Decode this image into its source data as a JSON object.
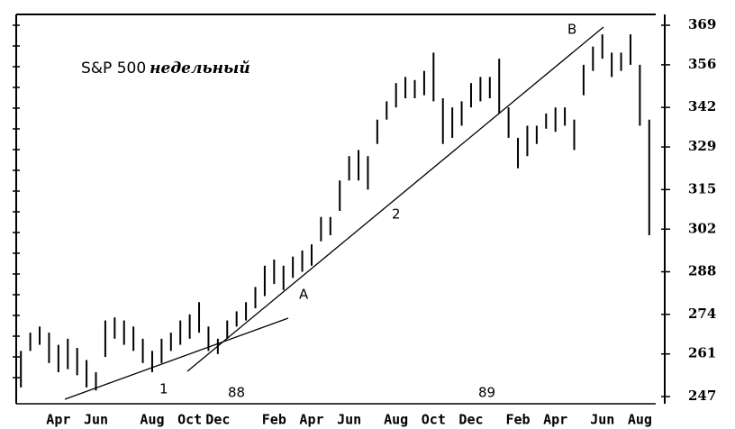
{
  "chart_data": {
    "type": "range",
    "title": "S&P 500",
    "subtitle": "недельный",
    "annotations": [
      "A",
      "B",
      "1",
      "2",
      "88",
      "89"
    ],
    "categories": [
      null,
      null,
      null,
      null,
      "Apr",
      null,
      null,
      null,
      "Jun",
      null,
      null,
      null,
      null,
      null,
      "Aug",
      null,
      null,
      null,
      "Oct",
      null,
      null,
      "Dec",
      null,
      null,
      null,
      null,
      null,
      "Feb",
      null,
      null,
      null,
      "Apr",
      null,
      null,
      null,
      "Jun",
      null,
      null,
      null,
      null,
      "Aug",
      null,
      null,
      null,
      "Oct",
      null,
      null,
      null,
      "Dec",
      null,
      null,
      null,
      null,
      "Feb",
      null,
      null,
      null,
      "Apr",
      null,
      null,
      null,
      null,
      "Jun",
      null,
      null,
      null,
      "Aug",
      null
    ],
    "high": [
      262,
      268,
      270,
      268,
      264,
      266,
      263,
      259,
      255,
      272,
      273,
      272,
      270,
      266,
      262,
      266,
      268,
      272,
      274,
      278,
      270,
      266,
      272,
      275,
      278,
      283,
      290,
      292,
      290,
      293,
      295,
      297,
      306,
      306,
      318,
      326,
      328,
      326,
      338,
      344,
      350,
      352,
      351,
      354,
      360,
      345,
      342,
      344,
      350,
      352,
      352,
      358,
      342,
      332,
      336,
      336,
      340,
      342,
      342,
      338,
      356,
      362,
      366,
      360,
      360,
      366,
      356,
      338
    ],
    "low": [
      250,
      262,
      264,
      258,
      255,
      256,
      254,
      250,
      249,
      260,
      266,
      264,
      262,
      258,
      255,
      258,
      262,
      264,
      266,
      268,
      262,
      261,
      266,
      270,
      272,
      276,
      280,
      284,
      282,
      286,
      288,
      290,
      298,
      300,
      308,
      318,
      318,
      315,
      330,
      338,
      342,
      345,
      345,
      346,
      344,
      330,
      332,
      336,
      342,
      344,
      345,
      340,
      332,
      322,
      326,
      330,
      335,
      334,
      336,
      328,
      346,
      354,
      358,
      352,
      354,
      356,
      336,
      300
    ],
    "color": "#000000",
    "ylim": [
      247,
      369
    ],
    "yticks": [
      247,
      261,
      274,
      288,
      302,
      315,
      329,
      342,
      356,
      369
    ]
  }
}
